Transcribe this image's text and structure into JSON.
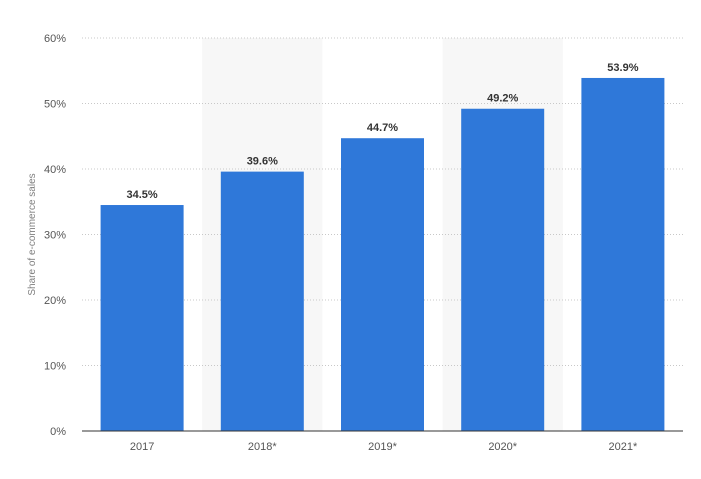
{
  "chart_data": {
    "type": "bar",
    "title": "",
    "xlabel": "",
    "ylabel": "Share of e-commerce sales",
    "categories": [
      "2017",
      "2018*",
      "2019*",
      "2020*",
      "2021*"
    ],
    "values": [
      34.5,
      39.6,
      44.7,
      49.2,
      53.9
    ],
    "value_labels": [
      "34.5%",
      "39.6%",
      "44.7%",
      "49.2%",
      "53.9%"
    ],
    "ylim": [
      0,
      60
    ],
    "y_ticks": [
      0,
      10,
      20,
      30,
      40,
      50,
      60
    ],
    "y_tick_labels": [
      "0%",
      "10%",
      "20%",
      "30%",
      "40%",
      "50%",
      "60%"
    ],
    "grid": true,
    "grid_style": "dotted",
    "shaded_columns": [
      "2018*",
      "2020*"
    ],
    "colors": {
      "bar": "#2f78d9",
      "shade": "#f7f7f7",
      "grid": "#c8c8c8",
      "axis": "#333333"
    }
  }
}
